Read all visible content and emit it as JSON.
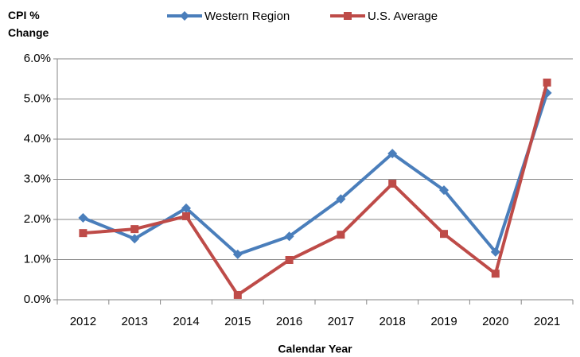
{
  "chart_data": {
    "type": "line",
    "y_label": "CPI % Change",
    "x_label": "Calendar Year",
    "categories": [
      "2012",
      "2013",
      "2014",
      "2015",
      "2016",
      "2017",
      "2018",
      "2019",
      "2020",
      "2021"
    ],
    "series": [
      {
        "name": "Western Region",
        "color": "#4a7ebb",
        "marker": "diamond",
        "values": [
          2.04,
          1.52,
          2.28,
          1.13,
          1.58,
          2.51,
          3.64,
          2.73,
          1.19,
          5.15
        ]
      },
      {
        "name": "U.S. Average",
        "color": "#be4b48",
        "marker": "square",
        "values": [
          1.66,
          1.76,
          2.08,
          0.12,
          0.99,
          1.62,
          2.89,
          1.64,
          0.65,
          5.41
        ]
      }
    ],
    "ylim": [
      0,
      6
    ],
    "yticks": [
      {
        "value": 0,
        "label": "0.0%"
      },
      {
        "value": 1,
        "label": "1.0%"
      },
      {
        "value": 2,
        "label": "2.0%"
      },
      {
        "value": 3,
        "label": "3.0%"
      },
      {
        "value": 4,
        "label": "4.0%"
      },
      {
        "value": 5,
        "label": "5.0%"
      },
      {
        "value": 6,
        "label": "6.0%"
      }
    ],
    "grid": true,
    "legend": "top"
  }
}
